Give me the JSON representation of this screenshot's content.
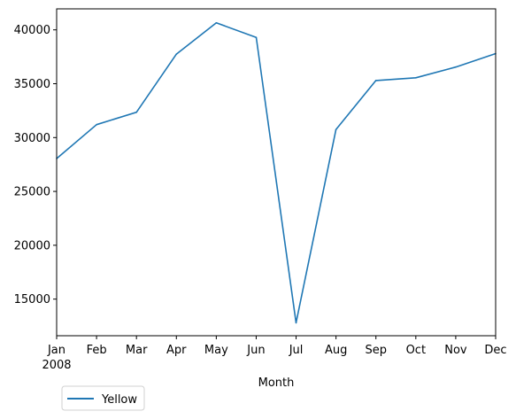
{
  "chart_data": {
    "type": "line",
    "categories": [
      "Jan",
      "Feb",
      "Mar",
      "Apr",
      "May",
      "Jun",
      "Jul",
      "Aug",
      "Sep",
      "Oct",
      "Nov",
      "Dec"
    ],
    "year_label": "2008",
    "series": [
      {
        "name": "Yellow",
        "color": "#1f77b4",
        "values": [
          28050,
          31200,
          32350,
          37750,
          40650,
          39300,
          12800,
          30750,
          35300,
          35550,
          36550,
          37800
        ]
      }
    ],
    "xlabel": "Month",
    "ylabel": "",
    "ylim": [
      11600,
      41950
    ],
    "yticks": [
      15000,
      20000,
      25000,
      30000,
      35000,
      40000
    ],
    "grid": false,
    "legend_position": "bottom-left"
  }
}
